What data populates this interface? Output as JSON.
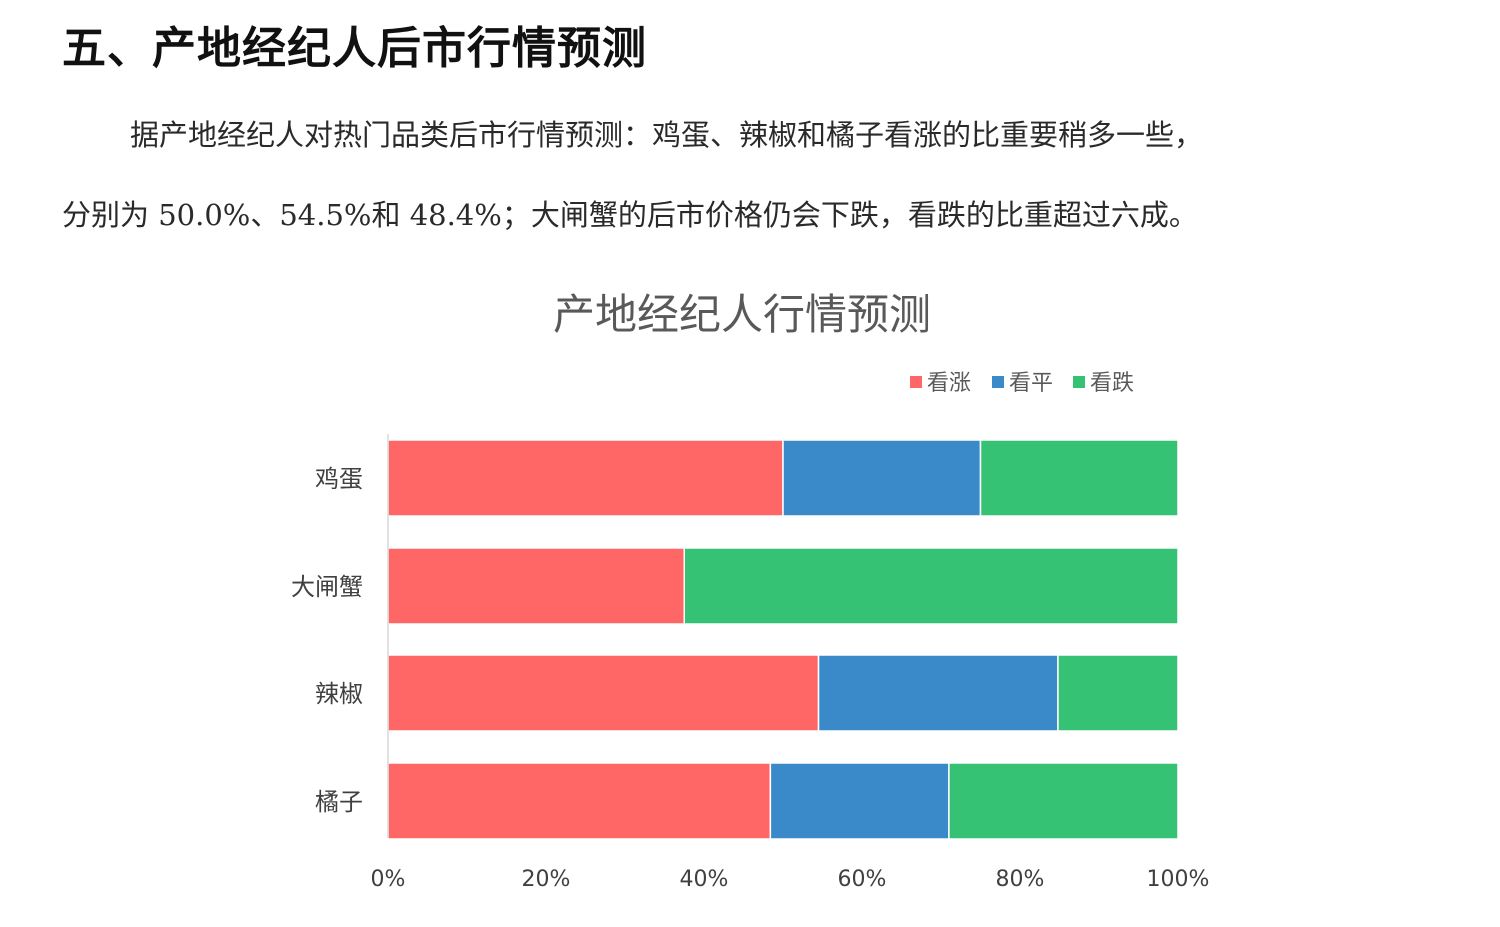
{
  "heading": "五、产地经纪人后市行情预测",
  "paragraph_line1": "据产地经纪人对热门品类后市行情预测：鸡蛋、辣椒和橘子看涨的比重要稍多一些，",
  "paragraph_line2": "分别为 50.0%、54.5%和 48.4%；大闸蟹的后市价格仍会下跌，看跌的比重超过六成。",
  "chart_data": {
    "type": "bar",
    "orientation": "horizontal",
    "stacked": "percent",
    "title": "产地经纪人行情预测",
    "categories": [
      "鸡蛋",
      "大闸蟹",
      "辣椒",
      "橘子"
    ],
    "series": [
      {
        "name": "看涨",
        "color": "#ff6666",
        "values": [
          50.0,
          37.5,
          54.5,
          48.4
        ]
      },
      {
        "name": "看平",
        "color": "#3a89c9",
        "values": [
          25.0,
          0,
          30.3,
          22.6
        ]
      },
      {
        "name": "看跌",
        "color": "#36c274",
        "values": [
          25.0,
          62.5,
          15.2,
          29.0
        ]
      }
    ],
    "xlim": [
      0,
      100
    ],
    "x_ticks": [
      "0%",
      "20%",
      "40%",
      "60%",
      "80%",
      "100%"
    ],
    "legend_position": "top-right",
    "grid": false
  }
}
